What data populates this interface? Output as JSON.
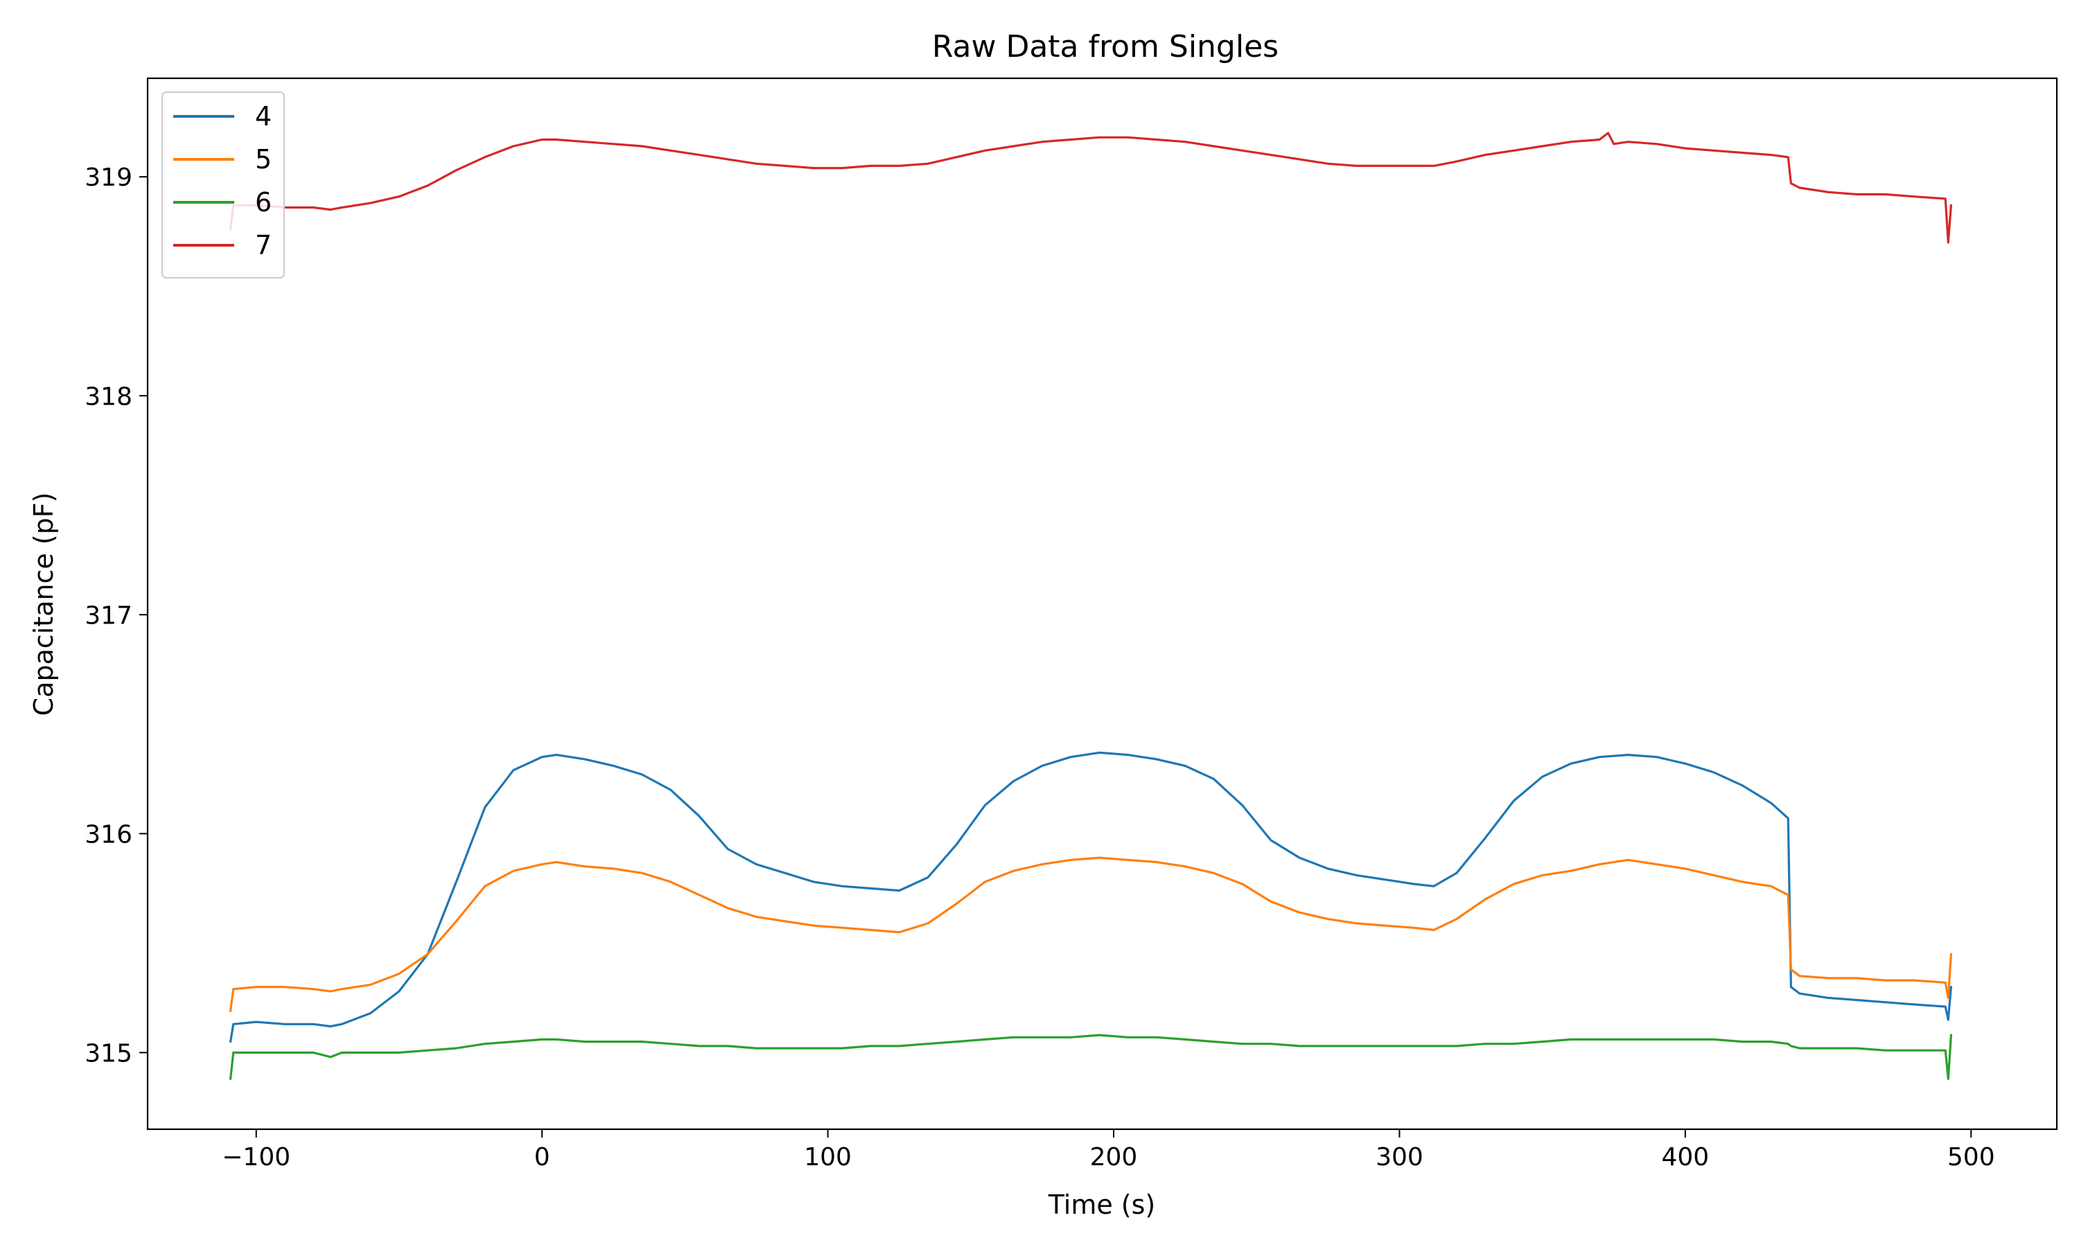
{
  "chart_data": {
    "type": "line",
    "title": "Raw Data from Singles",
    "xlabel": "Time (s)",
    "ylabel": "Capacitance (pF)",
    "xlim": [
      -138,
      530
    ],
    "ylim": [
      314.65,
      319.45
    ],
    "xticks": [
      -100,
      0,
      100,
      200,
      300,
      400,
      500
    ],
    "xtick_labels": [
      "−100",
      "0",
      "100",
      "200",
      "300",
      "400",
      "500"
    ],
    "yticks": [
      315,
      316,
      317,
      318,
      319
    ],
    "ytick_labels": [
      "315",
      "316",
      "317",
      "318",
      "319"
    ],
    "grid": false,
    "legend_position": "top-left",
    "series": [
      {
        "name": "4",
        "color": "#1f77b4",
        "points": [
          [
            -109,
            315.05
          ],
          [
            -108,
            315.13
          ],
          [
            -100,
            315.14
          ],
          [
            -90,
            315.13
          ],
          [
            -80,
            315.13
          ],
          [
            -74,
            315.12
          ],
          [
            -70,
            315.13
          ],
          [
            -60,
            315.18
          ],
          [
            -50,
            315.28
          ],
          [
            -40,
            315.45
          ],
          [
            -30,
            315.78
          ],
          [
            -20,
            316.12
          ],
          [
            -10,
            316.29
          ],
          [
            0,
            316.35
          ],
          [
            5,
            316.36
          ],
          [
            15,
            316.34
          ],
          [
            25,
            316.31
          ],
          [
            35,
            316.27
          ],
          [
            45,
            316.2
          ],
          [
            55,
            316.08
          ],
          [
            65,
            315.93
          ],
          [
            75,
            315.86
          ],
          [
            85,
            315.82
          ],
          [
            95,
            315.78
          ],
          [
            105,
            315.76
          ],
          [
            115,
            315.75
          ],
          [
            125,
            315.74
          ],
          [
            135,
            315.8
          ],
          [
            145,
            315.95
          ],
          [
            155,
            316.13
          ],
          [
            165,
            316.24
          ],
          [
            175,
            316.31
          ],
          [
            185,
            316.35
          ],
          [
            195,
            316.37
          ],
          [
            205,
            316.36
          ],
          [
            215,
            316.34
          ],
          [
            225,
            316.31
          ],
          [
            235,
            316.25
          ],
          [
            245,
            316.13
          ],
          [
            255,
            315.97
          ],
          [
            265,
            315.89
          ],
          [
            275,
            315.84
          ],
          [
            285,
            315.81
          ],
          [
            295,
            315.79
          ],
          [
            305,
            315.77
          ],
          [
            312,
            315.76
          ],
          [
            320,
            315.82
          ],
          [
            330,
            315.98
          ],
          [
            340,
            316.15
          ],
          [
            350,
            316.26
          ],
          [
            360,
            316.32
          ],
          [
            370,
            316.35
          ],
          [
            380,
            316.36
          ],
          [
            390,
            316.35
          ],
          [
            400,
            316.32
          ],
          [
            410,
            316.28
          ],
          [
            420,
            316.22
          ],
          [
            430,
            316.14
          ],
          [
            436,
            316.07
          ],
          [
            437,
            315.3
          ],
          [
            440,
            315.27
          ],
          [
            450,
            315.25
          ],
          [
            460,
            315.24
          ],
          [
            470,
            315.23
          ],
          [
            480,
            315.22
          ],
          [
            491,
            315.21
          ],
          [
            492,
            315.15
          ],
          [
            493,
            315.3
          ]
        ]
      },
      {
        "name": "5",
        "color": "#ff7f0e",
        "points": [
          [
            -109,
            315.19
          ],
          [
            -108,
            315.29
          ],
          [
            -100,
            315.3
          ],
          [
            -90,
            315.3
          ],
          [
            -80,
            315.29
          ],
          [
            -74,
            315.28
          ],
          [
            -70,
            315.29
          ],
          [
            -60,
            315.31
          ],
          [
            -50,
            315.36
          ],
          [
            -40,
            315.45
          ],
          [
            -30,
            315.6
          ],
          [
            -20,
            315.76
          ],
          [
            -10,
            315.83
          ],
          [
            0,
            315.86
          ],
          [
            5,
            315.87
          ],
          [
            15,
            315.85
          ],
          [
            25,
            315.84
          ],
          [
            35,
            315.82
          ],
          [
            45,
            315.78
          ],
          [
            55,
            315.72
          ],
          [
            65,
            315.66
          ],
          [
            75,
            315.62
          ],
          [
            85,
            315.6
          ],
          [
            95,
            315.58
          ],
          [
            105,
            315.57
          ],
          [
            115,
            315.56
          ],
          [
            125,
            315.55
          ],
          [
            135,
            315.59
          ],
          [
            145,
            315.68
          ],
          [
            155,
            315.78
          ],
          [
            165,
            315.83
          ],
          [
            175,
            315.86
          ],
          [
            185,
            315.88
          ],
          [
            195,
            315.89
          ],
          [
            205,
            315.88
          ],
          [
            215,
            315.87
          ],
          [
            225,
            315.85
          ],
          [
            235,
            315.82
          ],
          [
            245,
            315.77
          ],
          [
            255,
            315.69
          ],
          [
            265,
            315.64
          ],
          [
            275,
            315.61
          ],
          [
            285,
            315.59
          ],
          [
            295,
            315.58
          ],
          [
            305,
            315.57
          ],
          [
            312,
            315.56
          ],
          [
            320,
            315.61
          ],
          [
            330,
            315.7
          ],
          [
            340,
            315.77
          ],
          [
            350,
            315.81
          ],
          [
            360,
            315.83
          ],
          [
            370,
            315.86
          ],
          [
            380,
            315.88
          ],
          [
            390,
            315.86
          ],
          [
            400,
            315.84
          ],
          [
            410,
            315.81
          ],
          [
            420,
            315.78
          ],
          [
            430,
            315.76
          ],
          [
            436,
            315.72
          ],
          [
            437,
            315.38
          ],
          [
            440,
            315.35
          ],
          [
            450,
            315.34
          ],
          [
            460,
            315.34
          ],
          [
            470,
            315.33
          ],
          [
            480,
            315.33
          ],
          [
            491,
            315.32
          ],
          [
            492,
            315.25
          ],
          [
            493,
            315.45
          ]
        ]
      },
      {
        "name": "6",
        "color": "#2ca02c",
        "points": [
          [
            -109,
            314.88
          ],
          [
            -108,
            315.0
          ],
          [
            -100,
            315.0
          ],
          [
            -90,
            315.0
          ],
          [
            -80,
            315.0
          ],
          [
            -74,
            314.98
          ],
          [
            -70,
            315.0
          ],
          [
            -60,
            315.0
          ],
          [
            -50,
            315.0
          ],
          [
            -40,
            315.01
          ],
          [
            -30,
            315.02
          ],
          [
            -20,
            315.04
          ],
          [
            -10,
            315.05
          ],
          [
            0,
            315.06
          ],
          [
            5,
            315.06
          ],
          [
            15,
            315.05
          ],
          [
            25,
            315.05
          ],
          [
            35,
            315.05
          ],
          [
            45,
            315.04
          ],
          [
            55,
            315.03
          ],
          [
            65,
            315.03
          ],
          [
            75,
            315.02
          ],
          [
            85,
            315.02
          ],
          [
            95,
            315.02
          ],
          [
            105,
            315.02
          ],
          [
            115,
            315.03
          ],
          [
            125,
            315.03
          ],
          [
            135,
            315.04
          ],
          [
            145,
            315.05
          ],
          [
            155,
            315.06
          ],
          [
            165,
            315.07
          ],
          [
            175,
            315.07
          ],
          [
            185,
            315.07
          ],
          [
            195,
            315.08
          ],
          [
            205,
            315.07
          ],
          [
            215,
            315.07
          ],
          [
            225,
            315.06
          ],
          [
            235,
            315.05
          ],
          [
            245,
            315.04
          ],
          [
            255,
            315.04
          ],
          [
            265,
            315.03
          ],
          [
            275,
            315.03
          ],
          [
            285,
            315.03
          ],
          [
            295,
            315.03
          ],
          [
            305,
            315.03
          ],
          [
            312,
            315.03
          ],
          [
            320,
            315.03
          ],
          [
            330,
            315.04
          ],
          [
            340,
            315.04
          ],
          [
            350,
            315.05
          ],
          [
            360,
            315.06
          ],
          [
            370,
            315.06
          ],
          [
            380,
            315.06
          ],
          [
            390,
            315.06
          ],
          [
            400,
            315.06
          ],
          [
            410,
            315.06
          ],
          [
            420,
            315.05
          ],
          [
            430,
            315.05
          ],
          [
            436,
            315.04
          ],
          [
            437,
            315.03
          ],
          [
            440,
            315.02
          ],
          [
            450,
            315.02
          ],
          [
            460,
            315.02
          ],
          [
            470,
            315.01
          ],
          [
            480,
            315.01
          ],
          [
            491,
            315.01
          ],
          [
            492,
            314.88
          ],
          [
            493,
            315.08
          ]
        ]
      },
      {
        "name": "7",
        "color": "#d62728",
        "points": [
          [
            -109,
            318.76
          ],
          [
            -108,
            318.87
          ],
          [
            -100,
            318.87
          ],
          [
            -90,
            318.86
          ],
          [
            -80,
            318.86
          ],
          [
            -74,
            318.85
          ],
          [
            -70,
            318.86
          ],
          [
            -60,
            318.88
          ],
          [
            -50,
            318.91
          ],
          [
            -40,
            318.96
          ],
          [
            -30,
            319.03
          ],
          [
            -20,
            319.09
          ],
          [
            -10,
            319.14
          ],
          [
            0,
            319.17
          ],
          [
            5,
            319.17
          ],
          [
            15,
            319.16
          ],
          [
            25,
            319.15
          ],
          [
            35,
            319.14
          ],
          [
            45,
            319.12
          ],
          [
            55,
            319.1
          ],
          [
            65,
            319.08
          ],
          [
            75,
            319.06
          ],
          [
            85,
            319.05
          ],
          [
            95,
            319.04
          ],
          [
            105,
            319.04
          ],
          [
            115,
            319.05
          ],
          [
            125,
            319.05
          ],
          [
            135,
            319.06
          ],
          [
            145,
            319.09
          ],
          [
            155,
            319.12
          ],
          [
            165,
            319.14
          ],
          [
            175,
            319.16
          ],
          [
            185,
            319.17
          ],
          [
            195,
            319.18
          ],
          [
            205,
            319.18
          ],
          [
            215,
            319.17
          ],
          [
            225,
            319.16
          ],
          [
            235,
            319.14
          ],
          [
            245,
            319.12
          ],
          [
            255,
            319.1
          ],
          [
            265,
            319.08
          ],
          [
            275,
            319.06
          ],
          [
            285,
            319.05
          ],
          [
            295,
            319.05
          ],
          [
            305,
            319.05
          ],
          [
            312,
            319.05
          ],
          [
            320,
            319.07
          ],
          [
            330,
            319.1
          ],
          [
            340,
            319.12
          ],
          [
            350,
            319.14
          ],
          [
            360,
            319.16
          ],
          [
            370,
            319.17
          ],
          [
            373,
            319.2
          ],
          [
            375,
            319.15
          ],
          [
            380,
            319.16
          ],
          [
            390,
            319.15
          ],
          [
            400,
            319.13
          ],
          [
            410,
            319.12
          ],
          [
            420,
            319.11
          ],
          [
            430,
            319.1
          ],
          [
            436,
            319.09
          ],
          [
            437,
            318.97
          ],
          [
            440,
            318.95
          ],
          [
            450,
            318.93
          ],
          [
            460,
            318.92
          ],
          [
            470,
            318.92
          ],
          [
            480,
            318.91
          ],
          [
            491,
            318.9
          ],
          [
            492,
            318.7
          ],
          [
            493,
            318.87
          ]
        ]
      }
    ]
  }
}
